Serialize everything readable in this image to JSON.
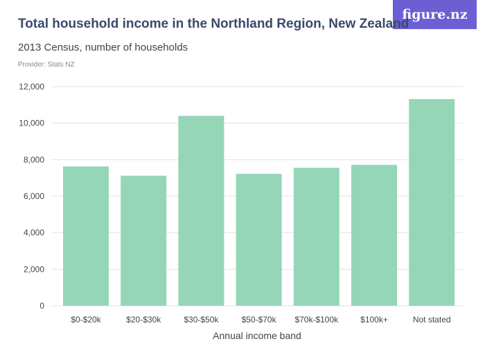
{
  "header": {
    "title": "Total household income in the Northland Region, New Zealand",
    "subtitle": "2013 Census, number of households",
    "provider": "Provider: Stats NZ",
    "logo_text": "figure.nz"
  },
  "colors": {
    "bar": "#96d6b8",
    "grid": "#e2e2e2",
    "logo_bg": "#6b5fd3",
    "title": "#3a4a6a"
  },
  "chart_data": {
    "type": "bar",
    "title": "Total household income in the Northland Region, New Zealand",
    "subtitle": "2013 Census, number of households",
    "xlabel": "Annual income band",
    "ylabel": "",
    "categories": [
      "$0-$20k",
      "$20-$30k",
      "$30-$50k",
      "$50-$70k",
      "$70k-$100k",
      "$100k+",
      "Not stated"
    ],
    "values": [
      7630,
      7120,
      10400,
      7230,
      7560,
      7720,
      11320
    ],
    "ylim": [
      0,
      12000
    ],
    "yticks": [
      0,
      2000,
      4000,
      6000,
      8000,
      10000,
      12000
    ],
    "ytick_labels": [
      "0",
      "2,000",
      "4,000",
      "6,000",
      "8,000",
      "10,000",
      "12,000"
    ],
    "grid": true,
    "legend": "none"
  }
}
